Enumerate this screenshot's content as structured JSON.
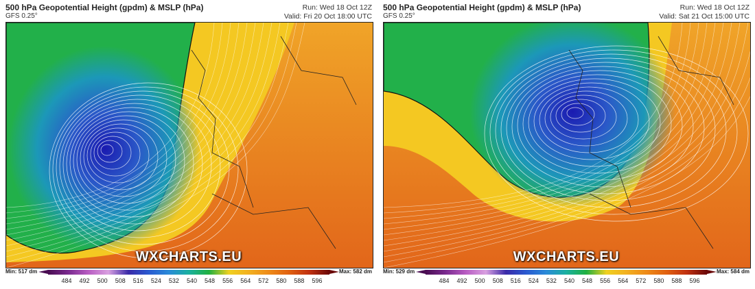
{
  "panels": [
    {
      "title": "500 hPa Geopotential Height (gpdm) & MSLP (hPa)",
      "model": "GFS 0.25°",
      "run": "Run: Wed 18 Oct 12Z",
      "valid": "Valid: Fri 20 Oct 18:00 UTC",
      "watermark": "WXCHARTS.EU",
      "min": "Min: 517 dm",
      "max": "Max: 582 dm",
      "scale": [
        484,
        492,
        500,
        508,
        516,
        524,
        532,
        540,
        548,
        556,
        564,
        572,
        580,
        588,
        596
      ]
    },
    {
      "title": "500 hPa Geopotential Height (gpdm) & MSLP (hPa)",
      "model": "GFS 0.25°",
      "run": "Run: Wed 18 Oct 12Z",
      "valid": "Valid: Sat 21 Oct 15:00 UTC",
      "watermark": "WXCHARTS.EU",
      "min": "Min: 529 dm",
      "max": "Max: 584 dm",
      "scale": [
        484,
        492,
        500,
        508,
        516,
        524,
        532,
        540,
        548,
        556,
        564,
        572,
        580,
        588,
        596
      ]
    }
  ]
}
